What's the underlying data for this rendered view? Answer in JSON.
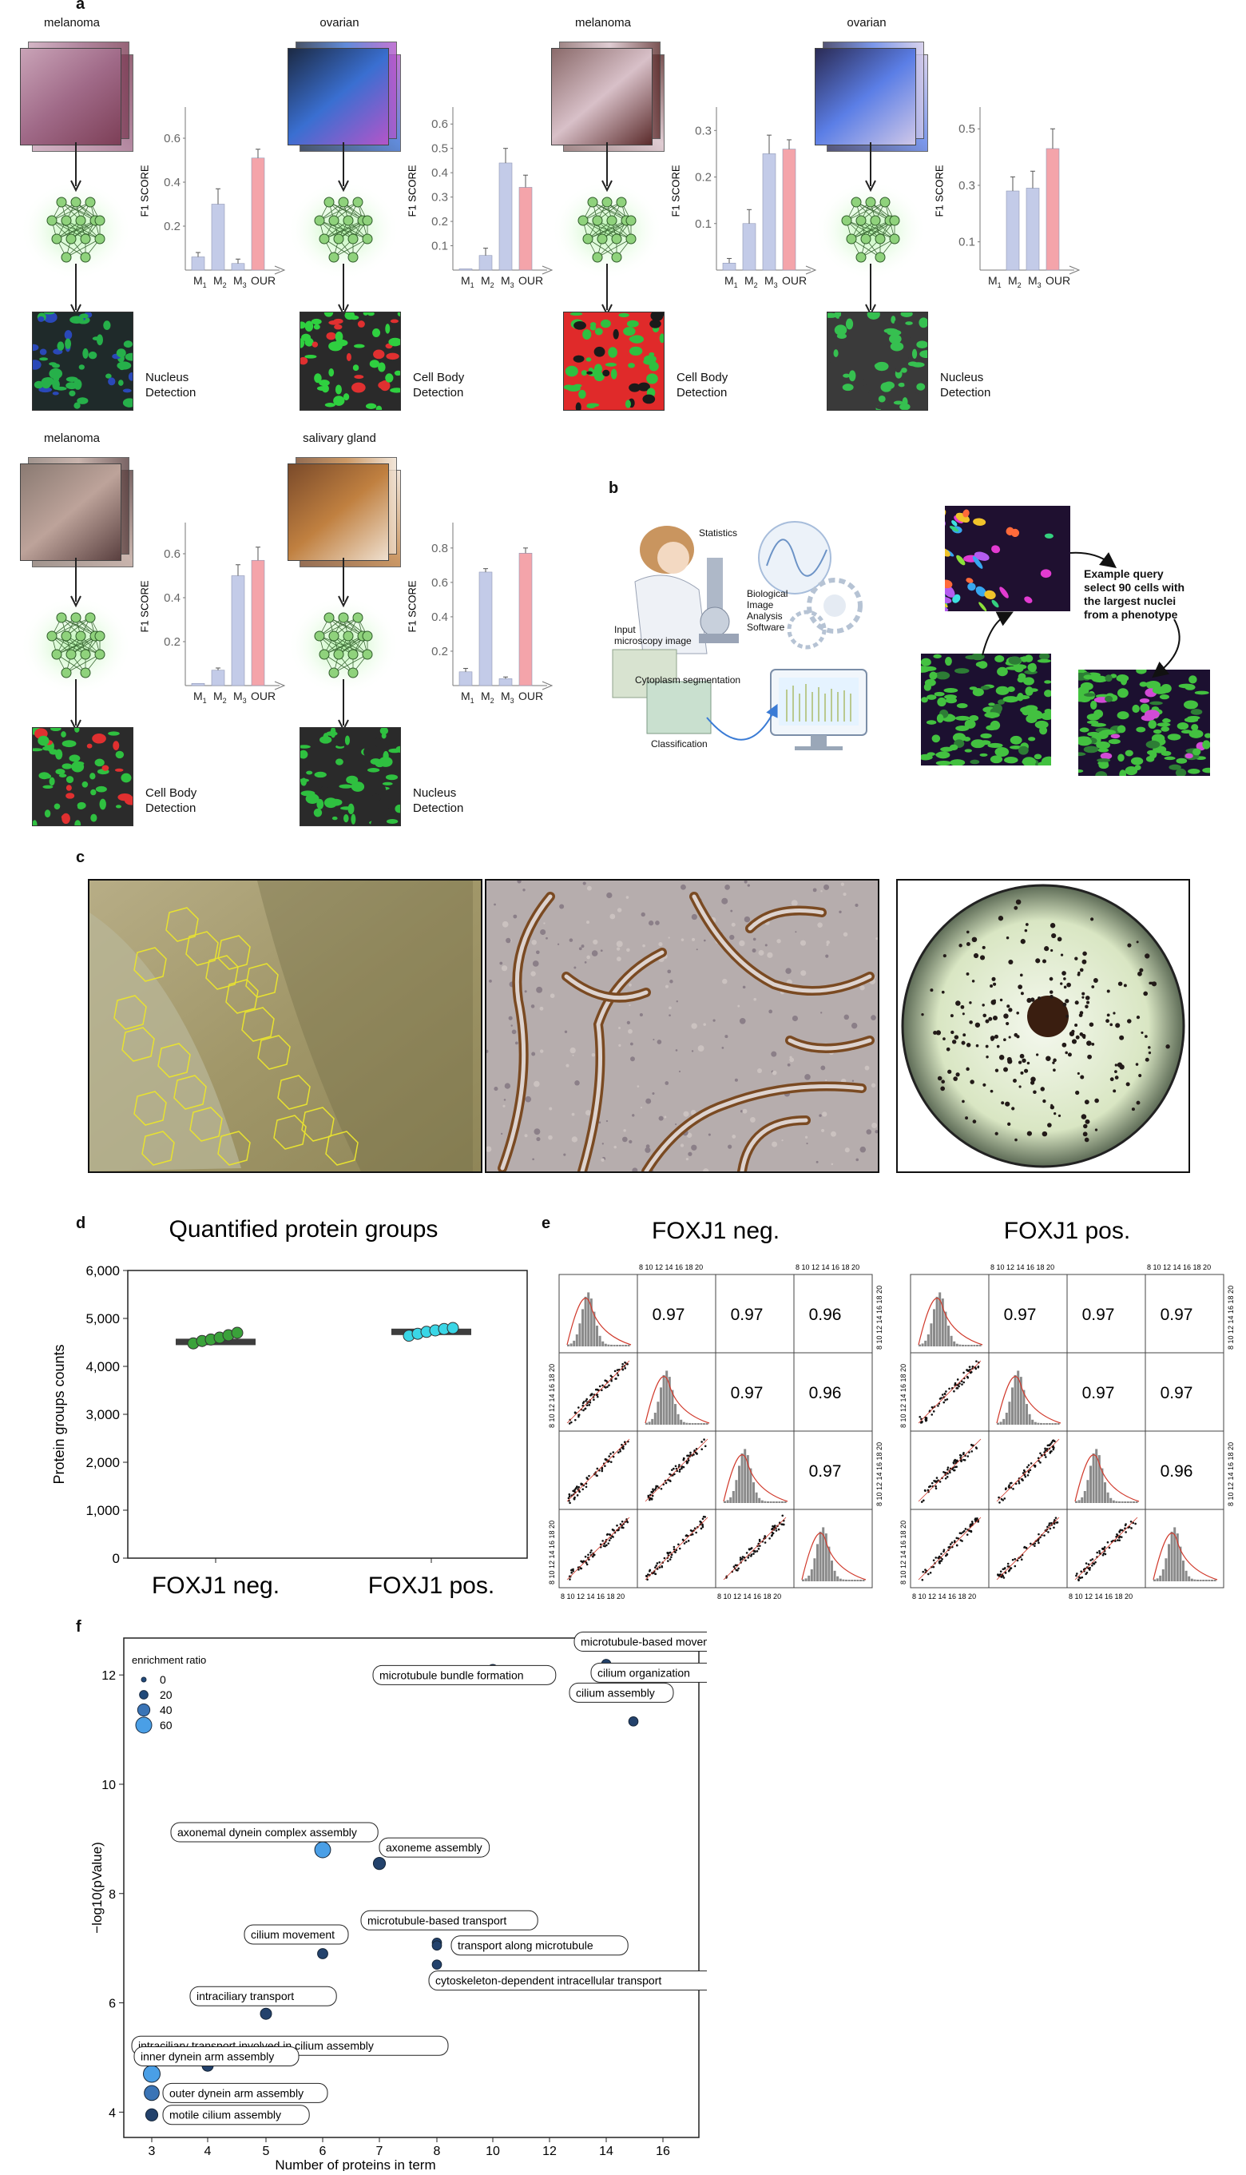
{
  "panel_a": {
    "letter": "a",
    "blocks": [
      {
        "tissue": "melanoma",
        "detection": "Nucleus\nDetection",
        "chart": {
          "ticks": [
            "0.6",
            "0.4",
            "0.2"
          ],
          "values": [
            0.06,
            0.3,
            0.03,
            0.51
          ],
          "errors": [
            0.02,
            0.07,
            0.02,
            0.04
          ],
          "ymax": 0.72
        }
      },
      {
        "tissue": "ovarian",
        "detection": "Cell Body\nDetection",
        "chart": {
          "ticks": [
            "0.6",
            "0.5",
            "0.4",
            "0.3",
            "0.2",
            "0.1"
          ],
          "values": [
            0.005,
            0.06,
            0.44,
            0.34
          ],
          "errors": [
            0.0,
            0.03,
            0.06,
            0.05
          ],
          "ymax": 0.65
        }
      },
      {
        "tissue": "melanoma",
        "detection": "Cell Body\nDetection",
        "chart": {
          "ticks": [
            "0.3",
            "0.2",
            "0.1"
          ],
          "values": [
            0.015,
            0.1,
            0.25,
            0.26
          ],
          "errors": [
            0.01,
            0.03,
            0.04,
            0.02
          ],
          "ymax": 0.34
        }
      },
      {
        "tissue": "ovarian",
        "detection": "Nucleus\nDetection",
        "chart": {
          "ticks": [
            "0.5",
            "0.3",
            "0.1"
          ],
          "values": [
            0.0,
            0.28,
            0.29,
            0.43
          ],
          "errors": [
            0.0,
            0.05,
            0.06,
            0.07
          ],
          "ymax": 0.56
        }
      },
      {
        "tissue": "melanoma",
        "detection": "Cell Body\nDetection",
        "chart": {
          "ticks": [
            "0.6",
            "0.4",
            "0.2"
          ],
          "values": [
            0.01,
            0.07,
            0.5,
            0.57
          ],
          "errors": [
            0.0,
            0.01,
            0.05,
            0.06
          ],
          "ymax": 0.72
        }
      },
      {
        "tissue": "salivary gland",
        "detection": "Nucleus\nDetection",
        "chart": {
          "ticks": [
            "0.8",
            "0.6",
            "0.4",
            "0.2"
          ],
          "values": [
            0.08,
            0.66,
            0.04,
            0.77
          ],
          "errors": [
            0.02,
            0.02,
            0.01,
            0.03
          ],
          "ymax": 0.92
        }
      }
    ],
    "ylabel": "F1 SCORE",
    "xlabels": [
      "M",
      "M",
      "M",
      "OUR"
    ],
    "subscripts": [
      "1",
      "2",
      "3",
      ""
    ],
    "colors": {
      "bar_blue": "#c3cbe8",
      "bar_red": "#f4a4aa",
      "glow": "#bdf0b5"
    }
  },
  "panel_b": {
    "letter": "b",
    "statistics": "Statistics",
    "input_label": "Input\nmicroscopy image",
    "software_label": "Biological\nImage\nAnalysis\nSoftware",
    "cytoplasm_label": "Cytoplasm segmentation",
    "classification_label": "Classification",
    "query_label": "Example query\nselect 90 cells with\nthe largest nuclei\nfrom a phenotype"
  },
  "panel_c": {
    "letter": "c"
  },
  "panel_d": {
    "letter": "d",
    "chart_data": {
      "type": "box",
      "title": "Quantified protein groups",
      "ylabel": "Protein groups counts",
      "categories": [
        "FOXJ1 neg.",
        "FOXJ1 pos."
      ],
      "yticks": [
        "0",
        "1,000",
        "2,000",
        "3,000",
        "4,000",
        "5,000",
        "6,000"
      ],
      "ylim": [
        0,
        6000
      ],
      "medians": [
        4510,
        4720
      ],
      "points": [
        [
          4480,
          4530,
          4560,
          4600,
          4650,
          4700
        ],
        [
          4640,
          4680,
          4720,
          4750,
          4780,
          4800
        ]
      ],
      "colors": [
        "#3aa23a",
        "#3ad6e6"
      ]
    }
  },
  "panel_e": {
    "letter": "e",
    "matrices": [
      {
        "title": "FOXJ1 neg.",
        "correlations": [
          [
            "0.97",
            "0.97",
            "0.96"
          ],
          [
            "0.97",
            "0.96"
          ],
          [
            "0.97"
          ]
        ]
      },
      {
        "title": "FOXJ1 pos.",
        "correlations": [
          [
            "0.97",
            "0.97",
            "0.97"
          ],
          [
            "0.97",
            "0.97"
          ],
          [
            "0.96"
          ]
        ]
      }
    ],
    "axis_ticks": [
      "8",
      "10",
      "12",
      "14",
      "16",
      "18",
      "20"
    ],
    "axis_ticks_short": [
      "8",
      "10",
      "12",
      "14",
      "16",
      "18",
      "20"
    ]
  },
  "panel_f": {
    "letter": "f",
    "chart_data": {
      "type": "scatter",
      "xlabel": "Number of proteins in term",
      "ylabel": "−log10(pValue)",
      "xticks": [
        "3",
        "4",
        "5",
        "6",
        "7",
        "8",
        "10",
        "12",
        "14",
        "16"
      ],
      "yticks": [
        "4",
        "6",
        "8",
        "10",
        "12"
      ],
      "legend_title": "enrichment ratio",
      "legend_entries": [
        "0",
        "20",
        "40",
        "60"
      ],
      "points": [
        {
          "label": "microtubule-based movement",
          "x": 14,
          "y": 12.2,
          "ratio": 20
        },
        {
          "label": "microtubule bundle formation",
          "x": 10,
          "y": 12.1,
          "ratio": 25
        },
        {
          "label": "cilium organization",
          "x": 16,
          "y": 12.1,
          "ratio": 20
        },
        {
          "label": "cilium assembly",
          "x": 15,
          "y": 11.15,
          "ratio": 20
        },
        {
          "label": "axonemal dynein complex assembly",
          "x": 6,
          "y": 8.8,
          "ratio": 55
        },
        {
          "label": "axoneme assembly",
          "x": 7,
          "y": 8.55,
          "ratio": 35
        },
        {
          "label": "microtubule-based transport",
          "x": 8,
          "y": 7.1,
          "ratio": 20
        },
        {
          "label": "cilium movement",
          "x": 6,
          "y": 6.9,
          "ratio": 25
        },
        {
          "label": "transport along microtubule",
          "x": 8,
          "y": 7.05,
          "ratio": 20
        },
        {
          "label": "cytoskeleton-dependent intracellular transport",
          "x": 8,
          "y": 6.7,
          "ratio": 20
        },
        {
          "label": "intraciliary transport",
          "x": 5,
          "y": 5.8,
          "ratio": 30
        },
        {
          "label": "intraciliary transport involved in cilium assembly",
          "x": 4,
          "y": 4.85,
          "ratio": 30
        },
        {
          "label": "inner dynein arm assembly",
          "x": 3,
          "y": 4.7,
          "ratio": 60
        },
        {
          "label": "outer dynein arm assembly",
          "x": 3,
          "y": 4.35,
          "ratio": 50
        },
        {
          "label": "motile cilium assembly",
          "x": 3,
          "y": 3.95,
          "ratio": 35
        }
      ]
    }
  }
}
